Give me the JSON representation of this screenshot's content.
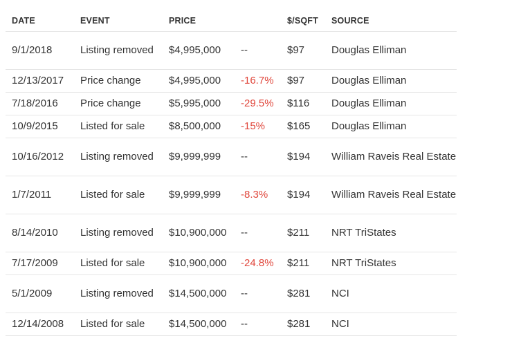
{
  "table": {
    "headers": {
      "date": "DATE",
      "event": "EVENT",
      "price": "PRICE",
      "change": "",
      "per_sqft": "$/SQFT",
      "source": "SOURCE"
    },
    "rows": [
      {
        "date": "9/1/2018",
        "event": "Listing removed",
        "price": "$4,995,000",
        "change": "--",
        "per_sqft": "$97",
        "source": "Douglas Elliman"
      },
      {
        "date": "12/13/2017",
        "event": "Price change",
        "price": "$4,995,000",
        "change": "-16.7%",
        "per_sqft": "$97",
        "source": "Douglas Elliman"
      },
      {
        "date": "7/18/2016",
        "event": "Price change",
        "price": "$5,995,000",
        "change": "-29.5%",
        "per_sqft": "$116",
        "source": "Douglas Elliman"
      },
      {
        "date": "10/9/2015",
        "event": "Listed for sale",
        "price": "$8,500,000",
        "change": "-15%",
        "per_sqft": "$165",
        "source": "Douglas Elliman"
      },
      {
        "date": "10/16/2012",
        "event": "Listing removed",
        "price": "$9,999,999",
        "change": "--",
        "per_sqft": "$194",
        "source": "William Raveis Real Estate"
      },
      {
        "date": "1/7/2011",
        "event": "Listed for sale",
        "price": "$9,999,999",
        "change": "-8.3%",
        "per_sqft": "$194",
        "source": "William Raveis Real Estate"
      },
      {
        "date": "8/14/2010",
        "event": "Listing removed",
        "price": "$10,900,000",
        "change": "--",
        "per_sqft": "$211",
        "source": "NRT TriStates"
      },
      {
        "date": "7/17/2009",
        "event": "Listed for sale",
        "price": "$10,900,000",
        "change": "-24.8%",
        "per_sqft": "$211",
        "source": "NRT TriStates"
      },
      {
        "date": "5/1/2009",
        "event": "Listing removed",
        "price": "$14,500,000",
        "change": "--",
        "per_sqft": "$281",
        "source": "NCI"
      },
      {
        "date": "12/14/2008",
        "event": "Listed for sale",
        "price": "$14,500,000",
        "change": "--",
        "per_sqft": "$281",
        "source": "NCI"
      }
    ]
  },
  "colors": {
    "negative_change": "#e0473c",
    "text": "#333333",
    "row_divider": "#e6e6e6"
  }
}
